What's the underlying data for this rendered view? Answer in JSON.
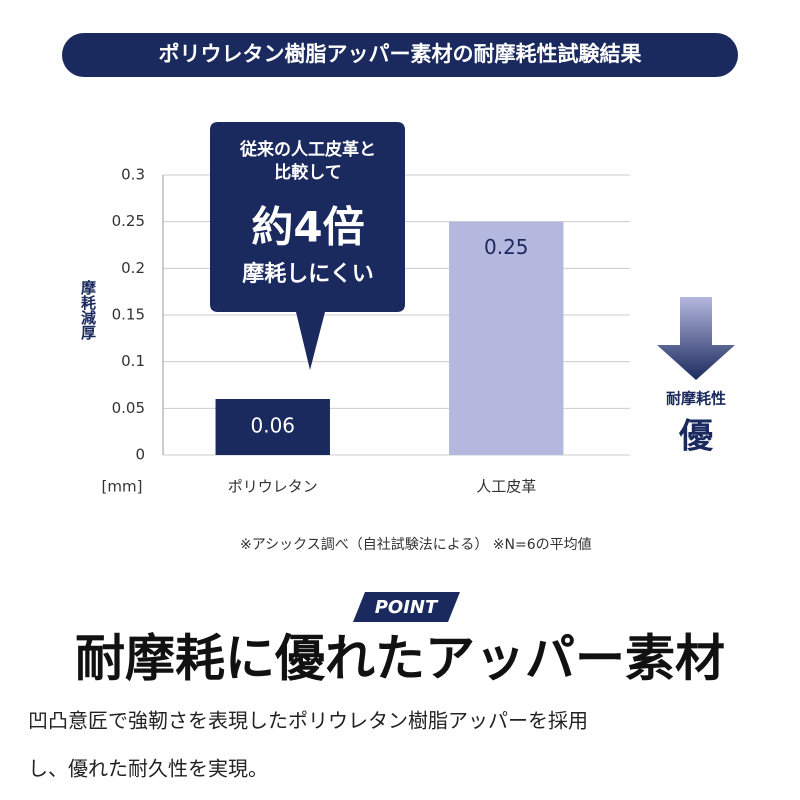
{
  "chart_data": {
    "type": "bar",
    "title": "ポリウレタン樹脂アッパー素材の耐摩耗性試験結果",
    "categories": [
      "ポリウレタン",
      "人工皮革"
    ],
    "values": [
      0.06,
      0.25
    ],
    "colors": [
      "#1b2a5e",
      "#b5b8de"
    ],
    "value_label_colors": [
      "#ffffff",
      "#1b2a5e"
    ],
    "ylim": [
      0,
      0.3
    ],
    "yticks": [
      0,
      0.05,
      0.1,
      0.15,
      0.2,
      0.25,
      0.3
    ],
    "ylabel": "摩耗減厚",
    "unit": "[mm]",
    "grid": true,
    "callout": [
      "従来の人工皮革と",
      "比較して",
      "約4倍",
      "摩耗しにくい"
    ],
    "arrow_label": "耐摩耗性",
    "arrow_grade": "優",
    "note": "※アシックス調べ（自社試験法による） ※N=6の平均値"
  },
  "badge": "POINT",
  "headline": "耐摩耗に優れたアッパー素材",
  "body": [
    "凹凸意匠で強靭さを表現したポリウレタン樹脂アッパーを採用",
    "し、優れた耐久性を実現。"
  ]
}
